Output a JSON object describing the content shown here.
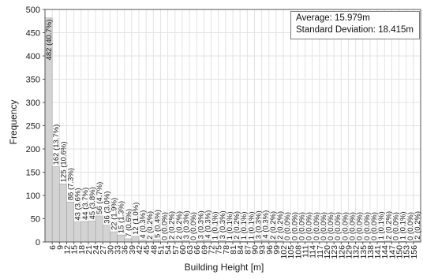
{
  "chart_data": {
    "type": "bar",
    "xlabel": "Building Height [m]",
    "ylabel": "Frequency",
    "ylim": [
      0,
      500
    ],
    "y_ticks": [
      "0",
      "50",
      "100",
      "150",
      "200",
      "250",
      "300",
      "350",
      "400",
      "450",
      "500"
    ],
    "grid": true,
    "x_ticks": [
      "6",
      "9",
      "12",
      "15",
      "18",
      "21",
      "24",
      "27",
      "30",
      "33",
      "36",
      "39",
      "42",
      "45",
      "48",
      "51",
      "54",
      "57",
      "60",
      "63",
      "66",
      "69",
      "72",
      "75",
      "78",
      "81",
      "84",
      "87",
      "90",
      "93",
      "96",
      "99",
      "102",
      "105",
      "108",
      "111",
      "114",
      "117",
      "120",
      "123",
      "126",
      "129",
      "132",
      "135",
      "138",
      "141",
      "144",
      "147",
      "150",
      "153",
      "156"
    ],
    "bins": [
      {
        "value": 482,
        "label": "482 (40.7%)"
      },
      {
        "value": 162,
        "label": "162 (13.7%)"
      },
      {
        "value": 125,
        "label": "125 (10.6%)"
      },
      {
        "value": 86,
        "label": "86 (7.3%)"
      },
      {
        "value": 43,
        "label": "43 (3.6%)"
      },
      {
        "value": 44,
        "label": "44 (3.7%)"
      },
      {
        "value": 45,
        "label": "45 (3.8%)"
      },
      {
        "value": 56,
        "label": "56 (4.7%)"
      },
      {
        "value": 36,
        "label": "36 (3.0%)"
      },
      {
        "value": 22,
        "label": "22 (1.9%)"
      },
      {
        "value": 15,
        "label": "15 (1.3%)"
      },
      {
        "value": 7,
        "label": "7 (0.6%)"
      },
      {
        "value": 12,
        "label": "12 (1.0%)"
      },
      {
        "value": 4,
        "label": "4 (0.3%)"
      },
      {
        "value": 2,
        "label": "2 (0.2%)"
      },
      {
        "value": 5,
        "label": "5 (0.4%)"
      },
      {
        "value": 0,
        "label": "0 (0.0%)"
      },
      {
        "value": 2,
        "label": "2 (0.2%)"
      },
      {
        "value": 2,
        "label": "2 (0.2%)"
      },
      {
        "value": 3,
        "label": "3 (0.3%)"
      },
      {
        "value": 0,
        "label": "0 (0.0%)"
      },
      {
        "value": 3,
        "label": "3 (0.3%)"
      },
      {
        "value": 4,
        "label": "4 (0.3%)"
      },
      {
        "value": 1,
        "label": "1 (0.1%)"
      },
      {
        "value": 3,
        "label": "3 (0.3%)"
      },
      {
        "value": 1,
        "label": "1 (0.1%)"
      },
      {
        "value": 2,
        "label": "2 (0.2%)"
      },
      {
        "value": 1,
        "label": "1 (0.1%)"
      },
      {
        "value": 1,
        "label": "1 (0.1%)"
      },
      {
        "value": 3,
        "label": "3 (0.3%)"
      },
      {
        "value": 4,
        "label": "4 (0.3%)"
      },
      {
        "value": 2,
        "label": "2 (0.2%)"
      },
      {
        "value": 2,
        "label": "2 (0.2%)"
      },
      {
        "value": 0,
        "label": "0 (0.0%)"
      },
      {
        "value": 0,
        "label": "0 (0.0%)"
      },
      {
        "value": 0,
        "label": "0 (0.0%)"
      },
      {
        "value": 0,
        "label": "0 (0.0%)"
      },
      {
        "value": 0,
        "label": "0 (0.0%)"
      },
      {
        "value": 0,
        "label": "0 (0.0%)"
      },
      {
        "value": 0,
        "label": "0 (0.0%)"
      },
      {
        "value": 0,
        "label": "0 (0.0%)"
      },
      {
        "value": 0,
        "label": "0 (0.0%)"
      },
      {
        "value": 0,
        "label": "0 (0.0%)"
      },
      {
        "value": 0,
        "label": "0 (0.0%)"
      },
      {
        "value": 0,
        "label": "0 (0.0%)"
      },
      {
        "value": 0,
        "label": "0 (0.0%)"
      },
      {
        "value": 1,
        "label": "1 (0.1%)"
      },
      {
        "value": 2,
        "label": "2 (0.2%)"
      },
      {
        "value": 0,
        "label": "0 (0.0%)"
      },
      {
        "value": 1,
        "label": "1 (0.1%)"
      },
      {
        "value": 0,
        "label": "0 (0.0%)"
      },
      {
        "value": 2,
        "label": "2 (0.2%)"
      }
    ],
    "annotations": {
      "average": "Average: 15.979m",
      "std_dev": "Standard Deviation: 18.415m"
    },
    "colors": {
      "bar": "#d3d3d3",
      "bar_border": "#9a9a9a",
      "grid": "#e3e3e3",
      "axis": "#555555"
    }
  }
}
